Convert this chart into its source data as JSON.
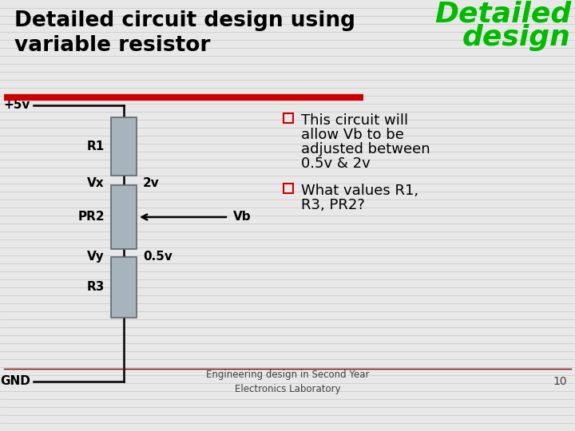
{
  "title_left": "Detailed circuit design using\nvariable resistor",
  "title_right_line1": "Detailed",
  "title_right_line2": "design",
  "title_color": "#000000",
  "title_right_color": "#00bb00",
  "red_line_color": "#cc0000",
  "bg_color": "#e8e8e8",
  "bullet1_line1": "This circuit will",
  "bullet1_line2": "allow Vb to be",
  "bullet1_line3": "adjusted between",
  "bullet1_line4": "0.5v & 2v",
  "bullet2_line1": "What values R1,",
  "bullet2_line2": "R3, PR2?",
  "footer": "Engineering design in Second Year\nElectronics Laboratory",
  "page_num": "10",
  "resistor_color": "#a8b4bc",
  "resistor_border": "#606870",
  "wire_color": "#000000",
  "labels": {
    "plus5v": "+5v",
    "R1": "R1",
    "Vx": "Vx",
    "2v": "2v",
    "PR2": "PR2",
    "Vb": "Vb",
    "Vy": "Vy",
    "0.5v": "0.5v",
    "R3": "R3",
    "GND": "GND"
  }
}
